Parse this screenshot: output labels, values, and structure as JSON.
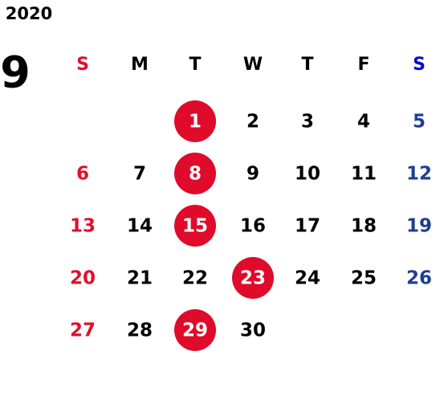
{
  "calendar": {
    "year": "2020",
    "month": "9",
    "weekdays": [
      "S",
      "M",
      "T",
      "W",
      "T",
      "F",
      "S"
    ],
    "weekday_colors": [
      "#e0102a",
      "#000000",
      "#000000",
      "#000000",
      "#000000",
      "#000000",
      "#0b0bd0"
    ],
    "day_colors": [
      "#e0102a",
      "#000000",
      "#000000",
      "#000000",
      "#000000",
      "#000000",
      "#1f3f8f"
    ],
    "mark_color": "#e00a2a",
    "weeks": [
      [
        null,
        null,
        {
          "day": "1",
          "marked": true
        },
        {
          "day": "2"
        },
        {
          "day": "3"
        },
        {
          "day": "4"
        },
        {
          "day": "5"
        }
      ],
      [
        {
          "day": "6"
        },
        {
          "day": "7"
        },
        {
          "day": "8",
          "marked": true
        },
        {
          "day": "9"
        },
        {
          "day": "10"
        },
        {
          "day": "11"
        },
        {
          "day": "12"
        }
      ],
      [
        {
          "day": "13"
        },
        {
          "day": "14"
        },
        {
          "day": "15",
          "marked": true
        },
        {
          "day": "16"
        },
        {
          "day": "17"
        },
        {
          "day": "18"
        },
        {
          "day": "19"
        }
      ],
      [
        {
          "day": "20"
        },
        {
          "day": "21"
        },
        {
          "day": "22"
        },
        {
          "day": "23",
          "marked": true
        },
        {
          "day": "24"
        },
        {
          "day": "25"
        },
        {
          "day": "26"
        }
      ],
      [
        {
          "day": "27"
        },
        {
          "day": "28"
        },
        {
          "day": "29",
          "marked": true
        },
        {
          "day": "30"
        },
        null,
        null,
        null
      ]
    ]
  }
}
